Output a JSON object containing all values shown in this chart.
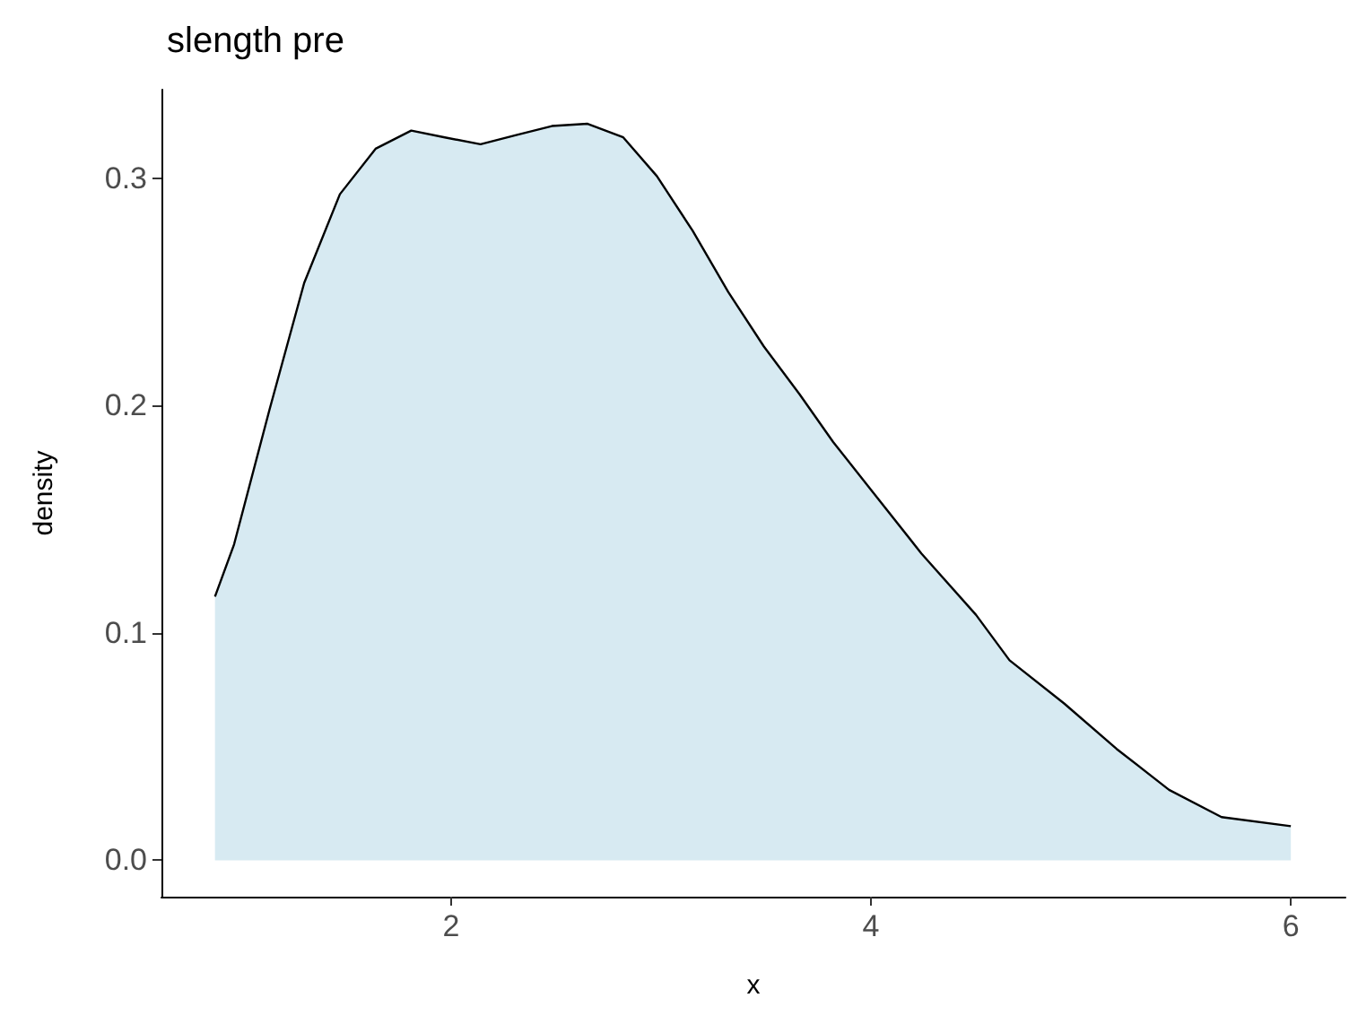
{
  "chart_data": {
    "type": "area",
    "title": "slength pre",
    "xlabel": "x",
    "ylabel": "density",
    "xlim": [
      0.62,
      6.26
    ],
    "xticks": [
      2,
      4,
      6
    ],
    "ylim": [
      -0.016,
      0.339
    ],
    "yticks": [
      {
        "value": 0,
        "label": "0.0"
      },
      0.1,
      0.2,
      0.3
    ],
    "grid": false,
    "marker": "none",
    "line_style": "solid",
    "series": [
      {
        "color": "#d7eaf2",
        "x": [
          0.875,
          0.966,
          1.134,
          1.3,
          1.47,
          1.64,
          1.81,
          1.97,
          2.14,
          2.31,
          2.48,
          2.65,
          2.82,
          2.98,
          3.15,
          3.32,
          3.49,
          3.66,
          3.82,
          4.0,
          4.24,
          4.5,
          4.66,
          4.92,
          5.17,
          5.42,
          5.67,
          6.0
        ],
        "values": [
          0.116,
          0.139,
          0.198,
          0.254,
          0.293,
          0.313,
          0.321,
          0.318,
          0.315,
          0.319,
          0.323,
          0.324,
          0.318,
          0.301,
          0.277,
          0.25,
          0.226,
          0.205,
          0.184,
          0.163,
          0.135,
          0.108,
          0.088,
          0.069,
          0.049,
          0.031,
          0.019,
          0.015
        ]
      }
    ]
  }
}
